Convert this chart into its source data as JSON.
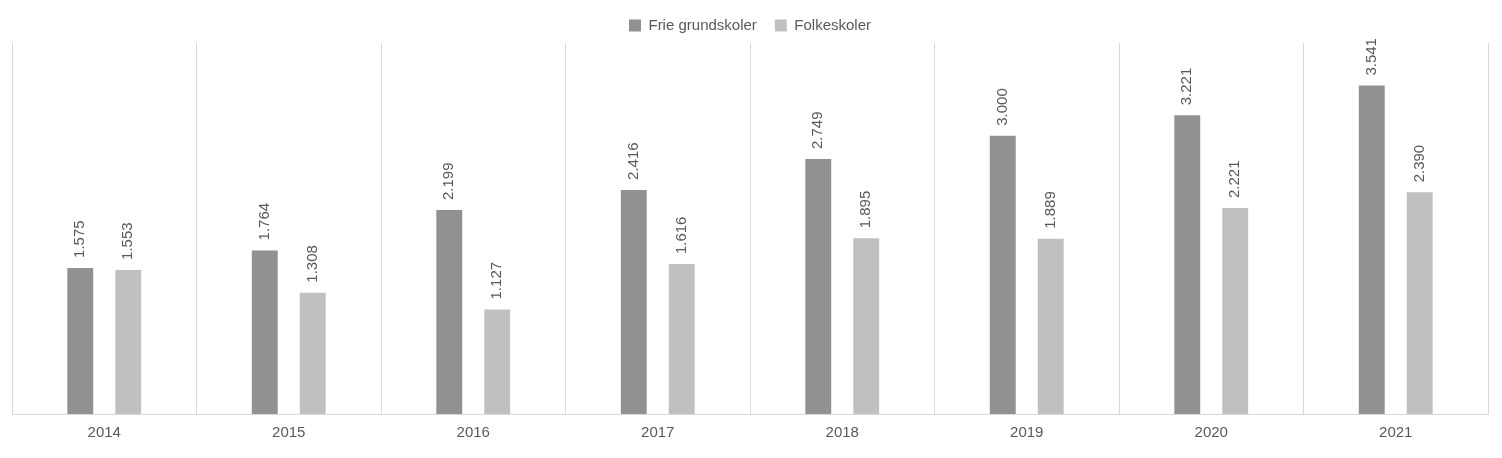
{
  "chart_data": {
    "type": "bar",
    "categories": [
      "2014",
      "2015",
      "2016",
      "2017",
      "2018",
      "2019",
      "2020",
      "2021"
    ],
    "series": [
      {
        "name": "Frie grundskoler",
        "color": "#919191",
        "values": [
          1575,
          1764,
          2199,
          2416,
          2749,
          3000,
          3221,
          3541
        ],
        "value_labels": [
          "1.575",
          "1.764",
          "2.199",
          "2.416",
          "2.749",
          "3.000",
          "3.221",
          "3.541"
        ]
      },
      {
        "name": "Folkeskoler",
        "color": "#c0c0c0",
        "values": [
          1553,
          1308,
          1127,
          1616,
          1895,
          1889,
          2221,
          2390
        ],
        "value_labels": [
          "1.553",
          "1.308",
          "1.127",
          "1.616",
          "1.895",
          "1.889",
          "2.221",
          "2.390"
        ]
      }
    ],
    "grid": "x",
    "legend": "top",
    "tick_labels": "x"
  }
}
